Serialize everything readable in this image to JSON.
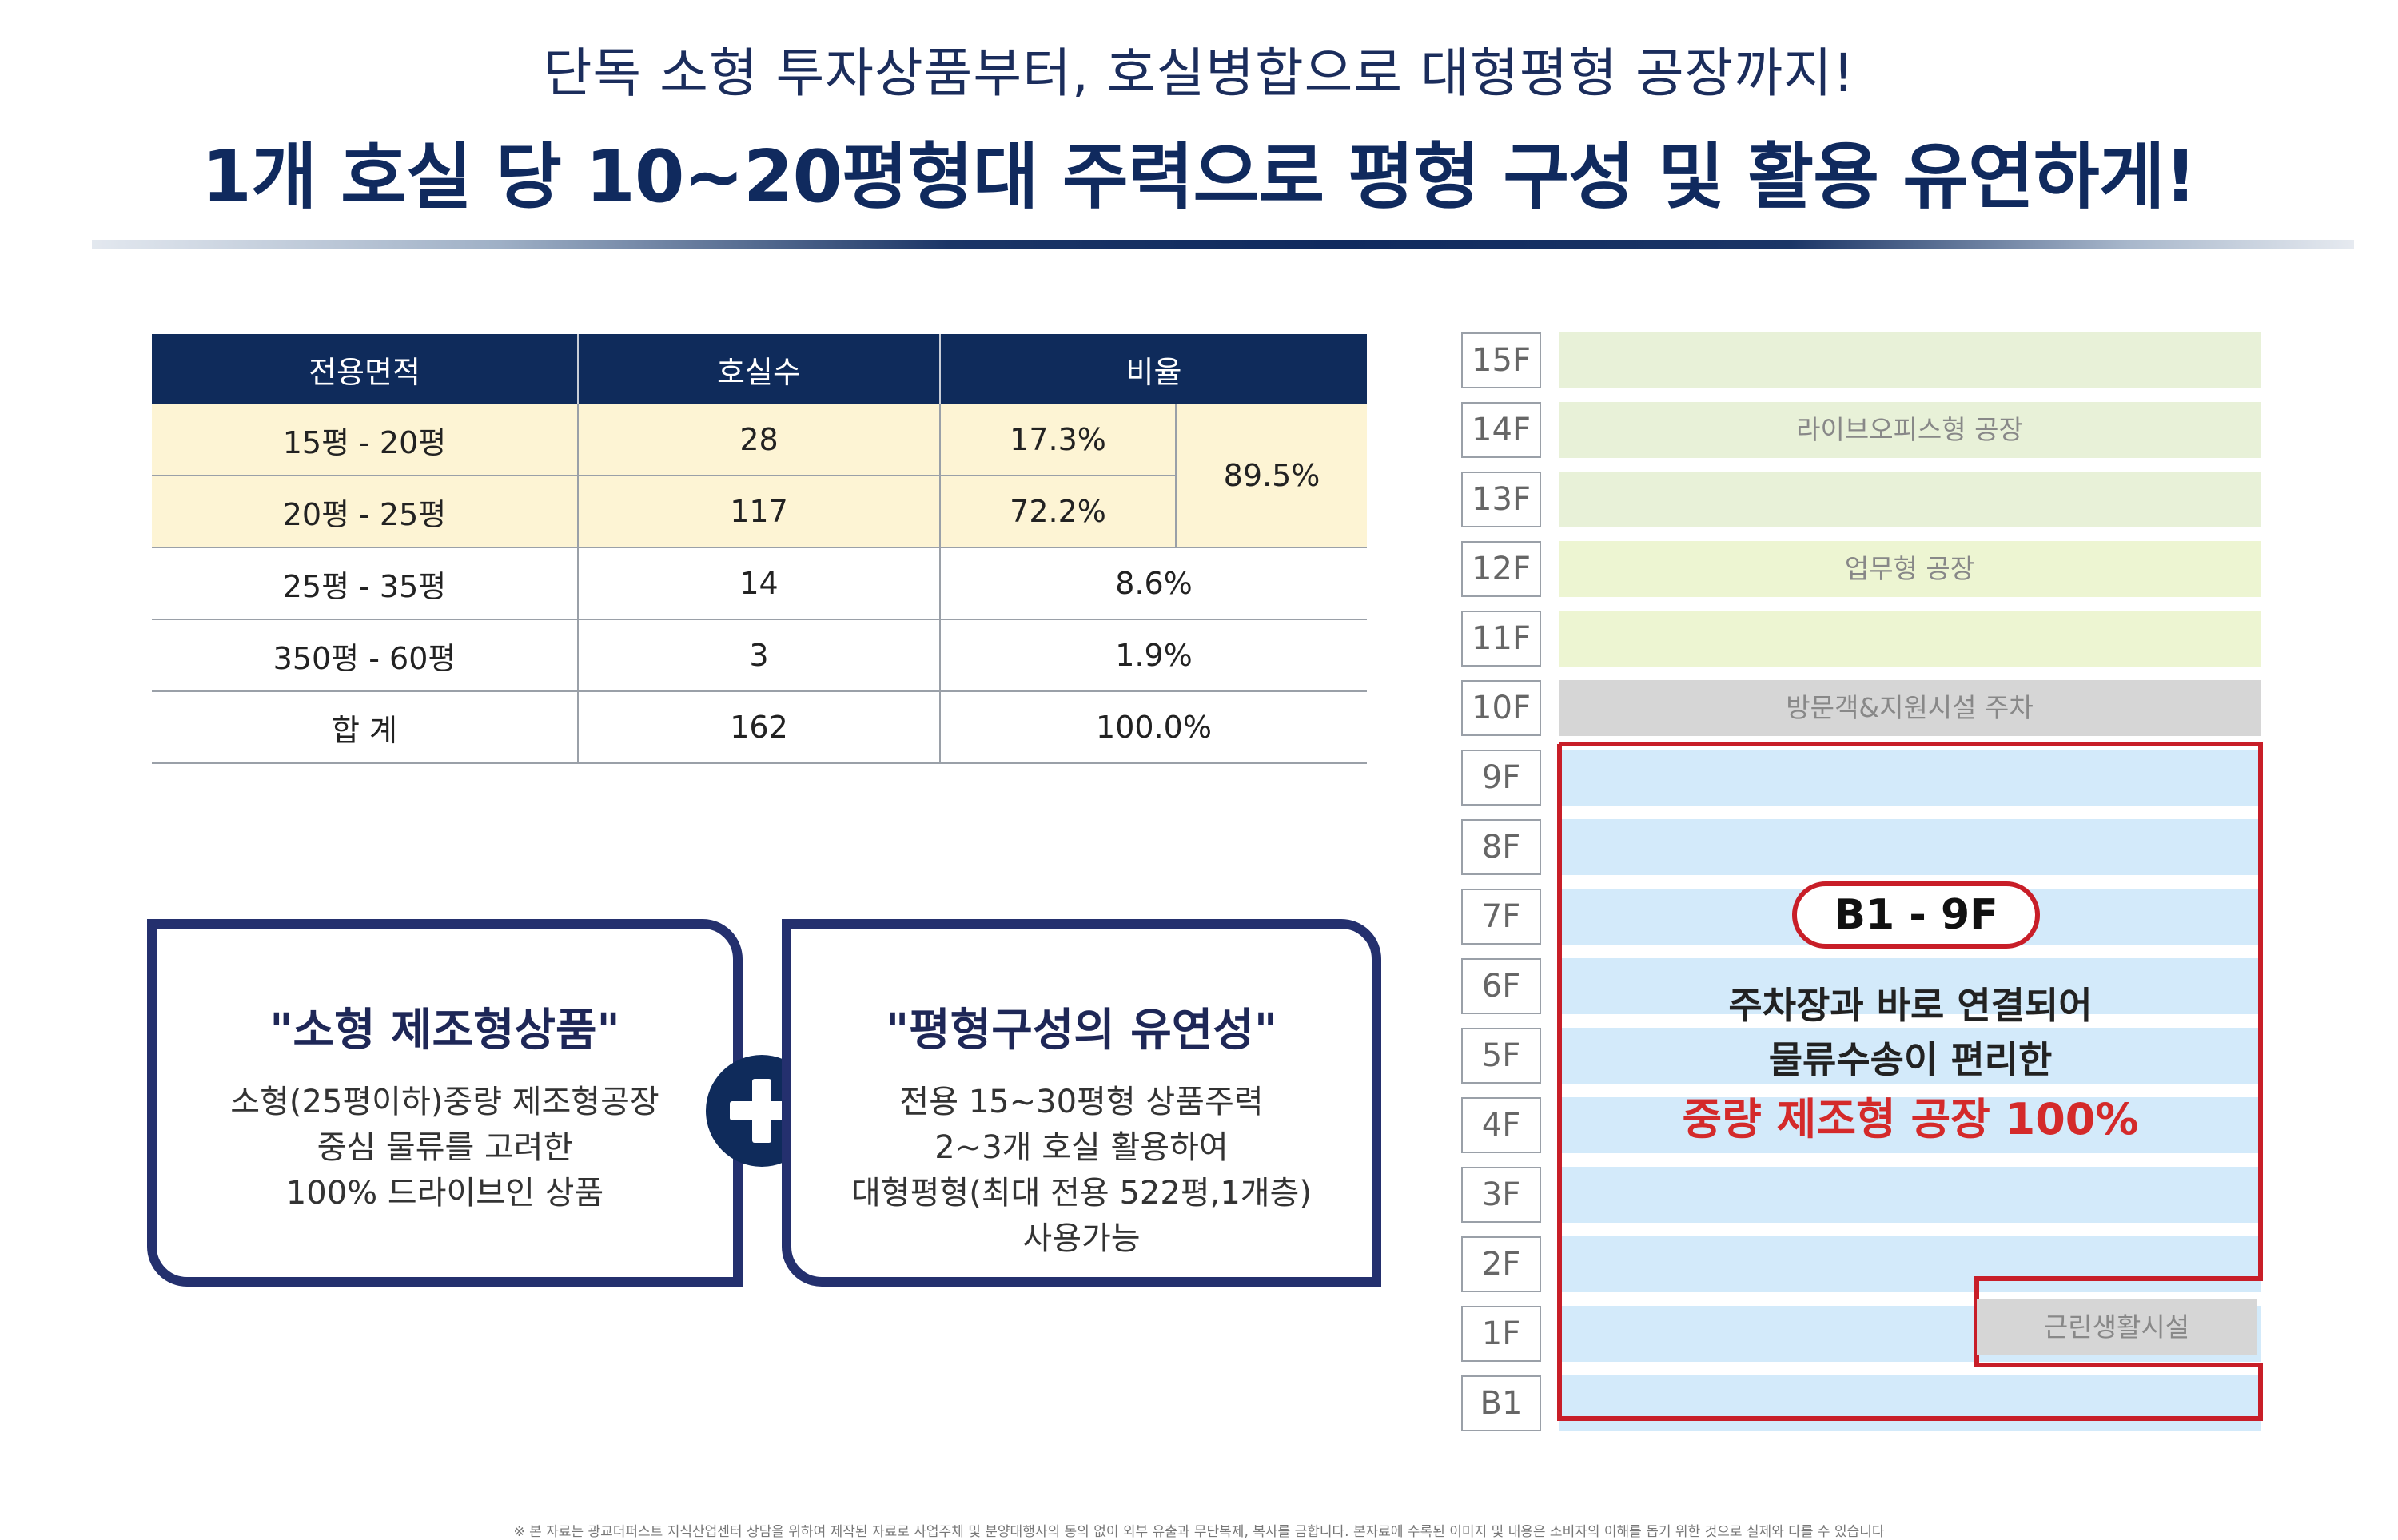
{
  "header": {
    "line1": "단독 소형 투자상품부터, 호실병합으로 대형평형 공장까지!",
    "line2": "1개 호실 당 10~20평형대 주력으로 평형 구성 및 활용 유연하게!"
  },
  "table": {
    "headers": [
      "전용면적",
      "호실수",
      "비율"
    ],
    "rows": [
      {
        "area": "15평 - 20평",
        "units": "28",
        "ratio": "17.3%"
      },
      {
        "area": "20평  - 25평",
        "units": "117",
        "ratio": "72.2%"
      },
      {
        "area": "25평 - 35평",
        "units": "14",
        "ratio": "8.6%"
      },
      {
        "area": "350평 - 60평",
        "units": "3",
        "ratio": "1.9%"
      },
      {
        "area": "합   계",
        "units": "162",
        "ratio": "100.0%"
      }
    ],
    "merged_ratio": "89.5%"
  },
  "box_left": {
    "title": "\"소형 제조형상품\"",
    "lines": [
      "소형(25평이하)중량 제조형공장",
      "중심 물류를 고려한",
      "100% 드라이브인 상품"
    ]
  },
  "box_right": {
    "title": "\"평형구성의 유연성\"",
    "lines": [
      "전용 15~30평형 상품주력",
      "2~3개 호실 활용하여",
      "대형평형(최대 전용 522평,1개층)",
      "사용가능"
    ]
  },
  "building": {
    "floors": [
      "15F",
      "14F",
      "13F",
      "12F",
      "11F",
      "10F",
      "9F",
      "8F",
      "7F",
      "6F",
      "5F",
      "4F",
      "3F",
      "2F",
      "1F",
      "B1"
    ],
    "zone_live_office": "라이브오피스형 공장",
    "zone_business": "업무형 공장",
    "zone_parking": "방문객&지원시설 주차",
    "amenity": "근린생활시설",
    "badge": "B1 - 9F",
    "caption1": "주차장과 바로 연결되어",
    "caption2": "물류수송이 편리한",
    "caption3": "중량 제조형 공장 100%",
    "colors": {
      "green": "#e8f1d8",
      "gray": "#d6d6d6",
      "blue": "#d3eafa",
      "red": "#c81e28"
    }
  },
  "footnote": "※ 본 자료는 광교더퍼스트 지식산업센터 상담을 위하여 제작된 자료로 사업주체 및 분양대행사의 동의 없이 외부 유출과 무단복제, 복사를 금합니다. 본자료에 수록된 이미지 및 내용은 소비자의 이해를 돕기 위한 것으로 실제와 다를 수 있습니다"
}
